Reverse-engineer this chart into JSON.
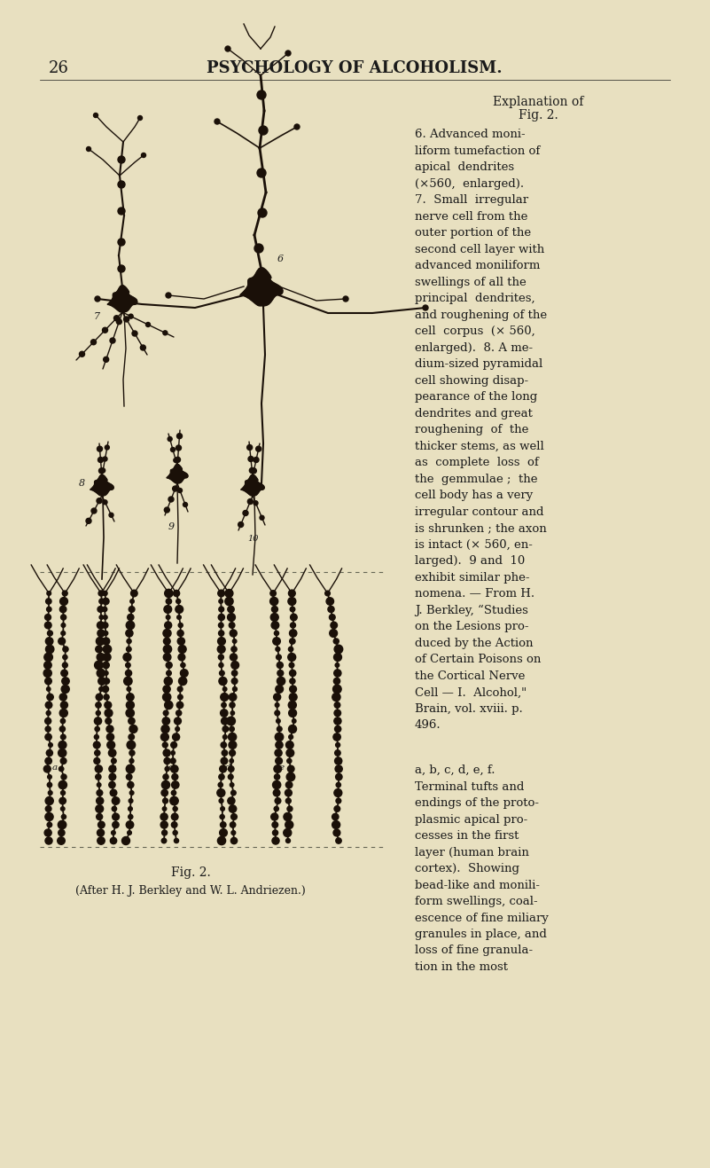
{
  "background_color": "#e8e0c0",
  "page_number": "26",
  "header_text": "PSYCHOLOGY OF ALCOHOLISM.",
  "explanation_title_line1": "Explanation of",
  "explanation_title_line2": "Fig. 2.",
  "right_body": "6. Advanced moni-\nliform tumefaction of\napical  dendrites\n(×560,  enlarged).\n7.  Small  irregular\nnerve cell from the\nouter portion of the\nsecond cell layer with\nadvanced moniliform\nswellings of all the\nprincipal  dendrites,\nand roughening of the\ncell  corpus  (× 560,\nenlarged).  8. A me-\ndium-sized pyramidal\ncell showing disap-\npearance of the long\ndendrites and great\nroughening  of  the\nthicker stems, as well\nas  complete  loss  of\nthe  gemmulae ;  the\ncell body has a very\nirregular contour and\nis shrunken ; the axon\nis intact (× 560, en-\nlarged).  9 and  10\nexhibit similar phe-\nnomena. — From H.\nJ. Berkley, “Studies\non the Lesions pro-\nduced by the Action\nof Certain Poisons on\nthe Cortical Nerve\nCell — I.  Alcohol,\"\nBrain, vol. xviii. p.\n496.",
  "right_body2": "a, b, c, d, e, f.\nTerminal tufts and\nendings of the proto-\nplasmic apical pro-\ncesses in the first\nlayer (human brain\ncortex).  Showing\nbead-like and monili-\nform swellings, coal-\nescence of fine miliary\ngranules in place, and\nloss of fine granula-\ntion in the most",
  "fig_caption": "Fig. 2.",
  "fig_credit": "(After H. J. Berkley and W. L. Andriezen.)",
  "text_color": "#1a1a1a",
  "neuron_color": "#1a1008",
  "header_fontsize": 13,
  "body_fontsize": 9.5,
  "title_fontsize": 10,
  "page_num_fontsize": 13
}
